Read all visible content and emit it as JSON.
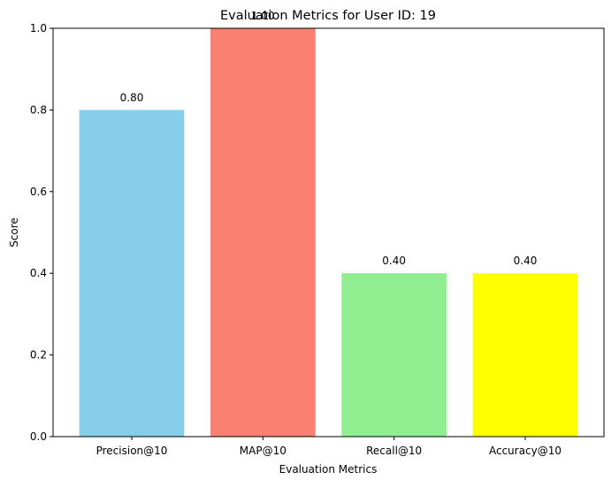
{
  "chart_data": {
    "type": "bar",
    "title": "Evaluation Metrics for User ID: 19",
    "xlabel": "Evaluation Metrics",
    "ylabel": "Score",
    "ylim": [
      0,
      1
    ],
    "yticks": [
      "0.0",
      "0.2",
      "0.4",
      "0.6",
      "0.8",
      "1.0"
    ],
    "categories": [
      "Precision@10",
      "MAP@10",
      "Recall@10",
      "Accuracy@10"
    ],
    "values": [
      0.8,
      1.0,
      0.4,
      0.4
    ],
    "value_labels": [
      "0.80",
      "1.00",
      "0.40",
      "0.40"
    ],
    "colors": [
      "#87ceeb",
      "#fa8072",
      "#90ee90",
      "#ffff00"
    ],
    "grid": false,
    "legend": "none"
  }
}
